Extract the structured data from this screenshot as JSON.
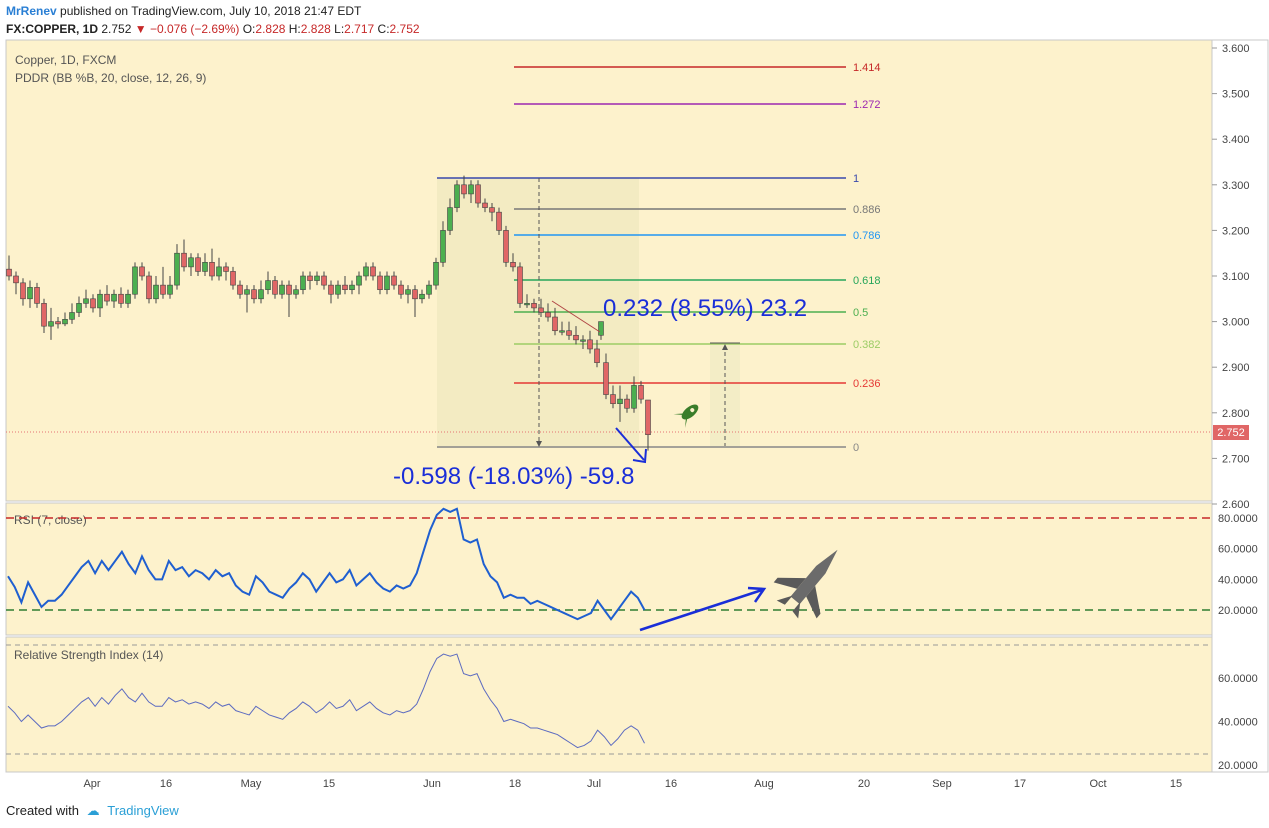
{
  "publish": {
    "user": "MrRenev",
    "text": "published on TradingView.com, July 10, 2018 21:47 EDT"
  },
  "symbol_line": {
    "symbol": "FX:COPPER, 1D",
    "last": "2.752",
    "change": "−0.076 (−2.69%)",
    "o_label": "O:",
    "o": "2.828",
    "h_label": "H:",
    "h": "2.828",
    "l_label": "L:",
    "l": "2.717",
    "c_label": "C:",
    "c": "2.752"
  },
  "legend": {
    "main": "Copper, 1D, FXCM",
    "indicator": "PDDR (BB %B, 20, close, 12, 26, 9)",
    "rsi7": "RSI (7, close)",
    "rsi14": "Relative Strength Index (14)"
  },
  "price_axis": [
    "3.600",
    "3.500",
    "3.400",
    "3.300",
    "3.200",
    "3.100",
    "3.000",
    "2.900",
    "2.800",
    "2.700",
    "2.600"
  ],
  "last_price_tag": "2.752",
  "rsi7_axis": [
    "80.0000",
    "60.0000",
    "40.0000",
    "20.0000"
  ],
  "rsi14_axis": [
    "60.0000",
    "40.0000",
    "20.0000"
  ],
  "time_axis": [
    "Apr",
    "16",
    "May",
    "15",
    "Jun",
    "18",
    "Jul",
    "16",
    "Aug",
    "20",
    "Sep",
    "17",
    "Oct",
    "15"
  ],
  "fib_levels": [
    {
      "label": "1.414",
      "color": "#c62828"
    },
    {
      "label": "1.272",
      "color": "#9c27b0"
    },
    {
      "label": "1",
      "color": "#3949ab"
    },
    {
      "label": "0.886",
      "color": "#777777"
    },
    {
      "label": "0.786",
      "color": "#2196f3"
    },
    {
      "label": "0.618",
      "color": "#26a65b"
    },
    {
      "label": "0.5",
      "color": "#4caf50"
    },
    {
      "label": "0.382",
      "color": "#9ccc65"
    },
    {
      "label": "0.236",
      "color": "#e53935"
    },
    {
      "label": "0",
      "color": "#888888"
    }
  ],
  "annotations": {
    "up_measure": "0.232 (8.55%) 23.2",
    "down_measure": "-0.598 (-18.03%) -59.8"
  },
  "footer": {
    "created_with": "Created with",
    "brand": "TradingView"
  },
  "colors": {
    "pane_bg": "#fdf2cc",
    "up_candle": "#4caf50",
    "down_candle": "#e06666",
    "rsi_line": "#1f5fd0",
    "annotation_blue": "#1a2ed8"
  }
}
